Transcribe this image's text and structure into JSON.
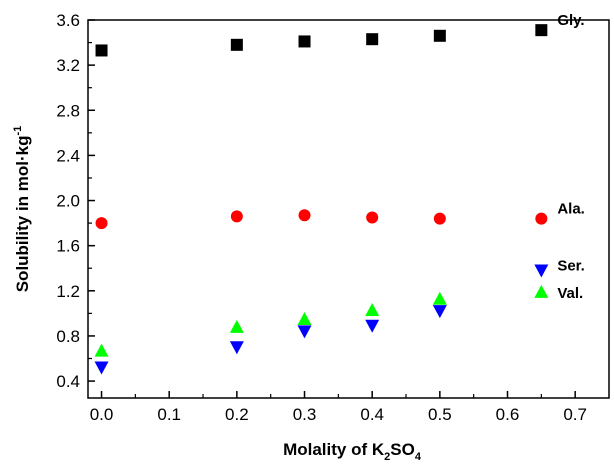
{
  "chart_data": {
    "type": "scatter",
    "xlabel": "Molality of K₂SO₄",
    "ylabel": "Solubility in mol·kg⁻¹",
    "xlim": [
      -0.02,
      0.75
    ],
    "ylim": [
      0.25,
      3.6
    ],
    "x_ticks": [
      0.0,
      0.1,
      0.2,
      0.3,
      0.4,
      0.5,
      0.6,
      0.7
    ],
    "x_tick_labels": [
      "0.0",
      "0.1",
      "0.2",
      "0.3",
      "0.4",
      "0.5",
      "0.6",
      "0.7"
    ],
    "y_ticks": [
      0.4,
      0.8,
      1.2,
      1.6,
      2.0,
      2.4,
      2.8,
      3.2,
      3.6
    ],
    "y_tick_labels": [
      "0.4",
      "0.8",
      "1.2",
      "1.6",
      "2.0",
      "2.4",
      "2.8",
      "3.2",
      "3.6"
    ],
    "grid": false,
    "legend": "inline labels at right",
    "series": [
      {
        "name": "Gly.",
        "marker": "square",
        "color": "#000000",
        "x": [
          0.0,
          0.2,
          0.3,
          0.4,
          0.5,
          0.65
        ],
        "y": [
          3.33,
          3.38,
          3.41,
          3.43,
          3.46,
          3.51
        ]
      },
      {
        "name": "Ala.",
        "marker": "circle",
        "color": "#ff0000",
        "x": [
          0.0,
          0.2,
          0.3,
          0.4,
          0.5,
          0.65
        ],
        "y": [
          1.8,
          1.86,
          1.87,
          1.85,
          1.84,
          1.84
        ]
      },
      {
        "name": "Ser.",
        "marker": "triangle-down",
        "color": "#0000ff",
        "x": [
          0.0,
          0.2,
          0.3,
          0.4,
          0.5,
          0.65
        ],
        "y": [
          0.52,
          0.7,
          0.84,
          0.89,
          1.02,
          1.38
        ]
      },
      {
        "name": "Val.",
        "marker": "triangle-up",
        "color": "#00ff00",
        "x": [
          0.0,
          0.2,
          0.3,
          0.4,
          0.5,
          0.65
        ],
        "y": [
          0.67,
          0.88,
          0.95,
          1.03,
          1.13,
          1.19
        ]
      }
    ]
  },
  "axes": {
    "xlabel_prefix": "Molality of K",
    "xlabel_sub1": "2",
    "xlabel_mid": "SO",
    "xlabel_sub2": "4",
    "ylabel_main": "Solubility in mol·kg",
    "ylabel_sup": "-1"
  }
}
